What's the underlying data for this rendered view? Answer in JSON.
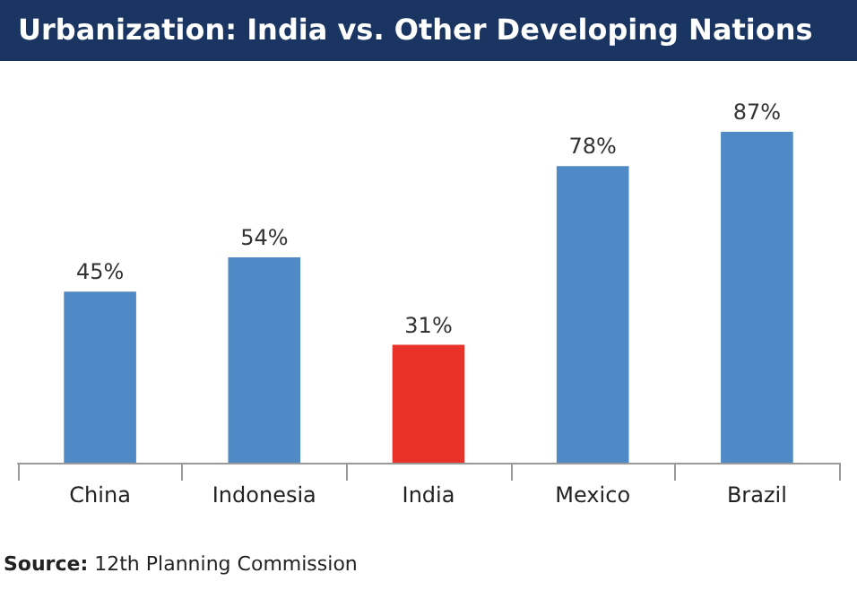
{
  "chart_data": {
    "type": "bar",
    "title": "Urbanization: India vs. Other Developing Nations",
    "categories": [
      "China",
      "Indonesia",
      "India",
      "Mexico",
      "Brazil"
    ],
    "values": [
      45,
      54,
      31,
      78,
      87
    ],
    "value_labels": [
      "45%",
      "54%",
      "31%",
      "78%",
      "87%"
    ],
    "colors": [
      "#4f8ac6",
      "#4f8ac6",
      "#e8322a",
      "#4f8ac6",
      "#4f8ac6"
    ],
    "tick_labels": "x",
    "annotations": [
      "Source: 12th Planning Commission"
    ]
  }
}
